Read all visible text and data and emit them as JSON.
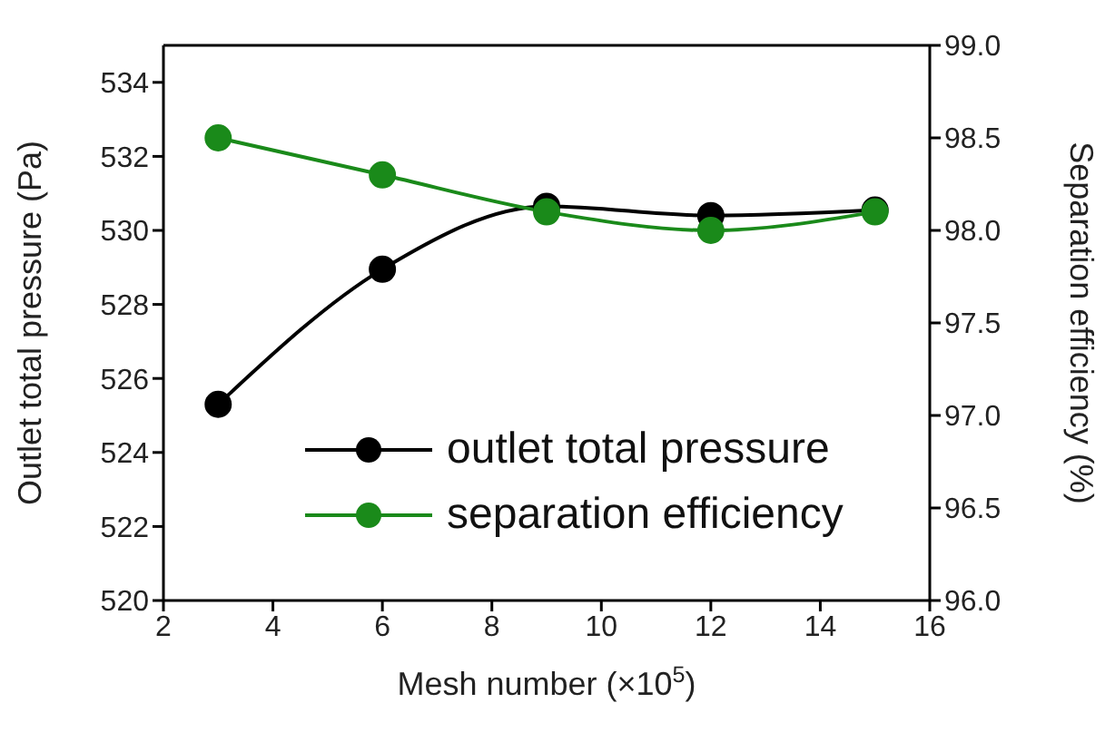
{
  "chart_data": {
    "type": "line",
    "xlabel": "Mesh number (×10$^{5}$)",
    "ylabel": "Outlet total pressure (Pa)",
    "y2label": "Separation efficiency (%)",
    "x": [
      3,
      6,
      9,
      12,
      15
    ],
    "series": [
      {
        "name": "outlet total pressure",
        "color": "#000000",
        "values": [
          525.3,
          528.95,
          530.65,
          530.4,
          530.55
        ]
      },
      {
        "name": "separation efficiency",
        "color": "#1a8a1a",
        "axis": "y2",
        "values": [
          98.5,
          98.3,
          98.1,
          98.0,
          98.1
        ]
      }
    ],
    "xlim": [
      2,
      16
    ],
    "xticks": [
      2,
      4,
      6,
      8,
      10,
      12,
      14,
      16
    ],
    "ylim": [
      520,
      535
    ],
    "yticks": [
      520,
      522,
      524,
      526,
      528,
      530,
      532,
      534
    ],
    "y2lim": [
      96,
      99
    ],
    "y2ticks": [
      {
        "value": 96,
        "label": "96.0"
      },
      {
        "value": 96.5,
        "label": "96.5"
      },
      {
        "value": 97,
        "label": "97.0"
      },
      {
        "value": 97.5,
        "label": "97.5"
      },
      {
        "value": 98,
        "label": "98.0"
      },
      {
        "value": 98.5,
        "label": "98.5"
      },
      {
        "value": 99,
        "label": "99.0"
      }
    ],
    "legend": "bottom",
    "marker": "circle",
    "line_style": "solid",
    "grid": false
  }
}
